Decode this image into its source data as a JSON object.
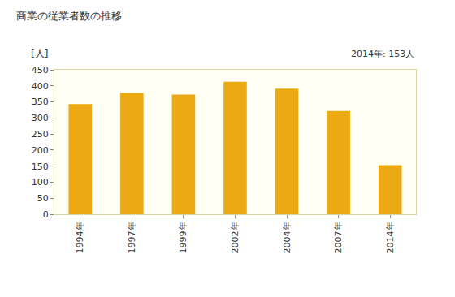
{
  "chart_data": {
    "type": "bar",
    "title": "商業の従業者数の推移",
    "ylabel": "[人]",
    "annotation": "2014年: 153人",
    "categories": [
      "1994年",
      "1997年",
      "1999年",
      "2002年",
      "2004年",
      "2007年",
      "2014年"
    ],
    "values": [
      343,
      378,
      373,
      413,
      391,
      322,
      153
    ],
    "color": "#ebaa14",
    "ylim": [
      0,
      450
    ],
    "yticks": [
      0,
      50,
      100,
      150,
      200,
      250,
      300,
      350,
      400,
      450
    ],
    "grid": false
  }
}
